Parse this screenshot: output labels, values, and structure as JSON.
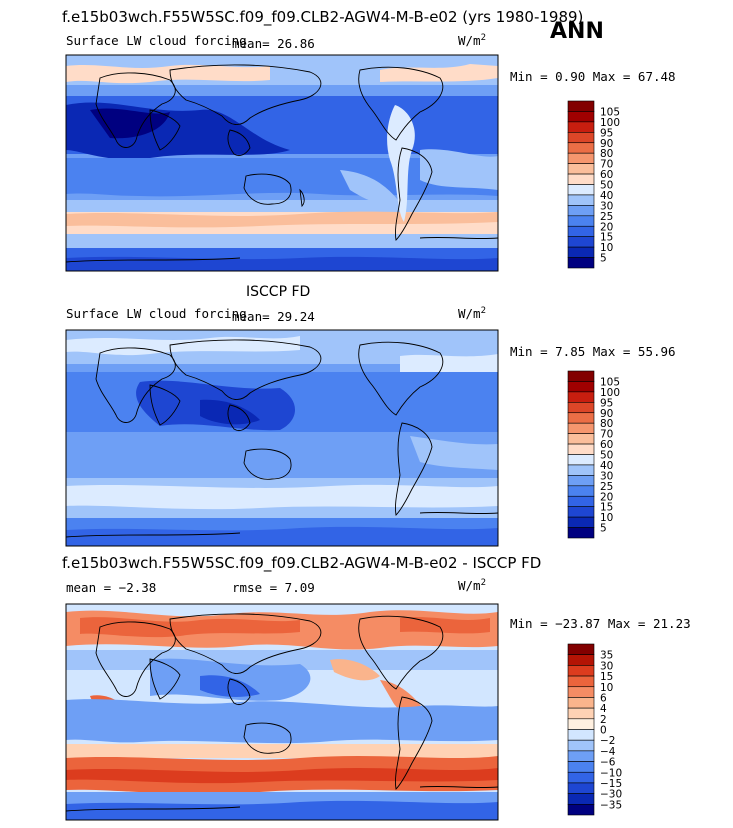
{
  "header": {
    "case_title": "f.e15b03wch.F55W5SC.f09_f09.CLB2-AGW4-M-B-e02 (yrs 1980-1989)",
    "season": "ANN"
  },
  "panels": [
    {
      "title": "",
      "variable": "Surface LW cloud forcing",
      "stat_text": "mean=  26.86",
      "stat2_text": "",
      "units": "W/m",
      "units_sup": "2",
      "minmax": "Min =   0.90 Max =  67.48",
      "levels": [
        "5",
        "10",
        "15",
        "20",
        "25",
        "30",
        "40",
        "50",
        "60",
        "70",
        "80",
        "90",
        "95",
        "100",
        "105"
      ]
    },
    {
      "title": "ISCCP FD",
      "variable": "Surface LW cloud forcing",
      "stat_text": "mean=  29.24",
      "stat2_text": "",
      "units": "W/m",
      "units_sup": "2",
      "minmax": "Min =   7.85 Max =  55.96",
      "levels": [
        "5",
        "10",
        "15",
        "20",
        "25",
        "30",
        "40",
        "50",
        "60",
        "70",
        "80",
        "90",
        "95",
        "100",
        "105"
      ]
    },
    {
      "title": "f.e15b03wch.F55W5SC.f09_f09.CLB2-AGW4-M-B-e02 - ISCCP FD",
      "variable": "",
      "stat_text": "mean =  −2.38",
      "stat2_text": "rmse =   7.09",
      "units": "W/m",
      "units_sup": "2",
      "minmax": "Min = −23.87 Max =  21.23",
      "levels": [
        "−35",
        "−30",
        "−15",
        "−10",
        "−6",
        "−4",
        "−2",
        "0",
        "2",
        "4",
        "6",
        "10",
        "15",
        "30",
        "35"
      ]
    }
  ],
  "colors": {
    "sequential": [
      "#000080",
      "#0a28b4",
      "#1e46d2",
      "#3264e6",
      "#4b82f0",
      "#6e9ff5",
      "#a0c4fa",
      "#dcebff",
      "#ffdcc8",
      "#fabe9b",
      "#f5966e",
      "#eb6e46",
      "#dc4628",
      "#c81e0f",
      "#a00000",
      "#820000"
    ],
    "diverging": [
      "#000080",
      "#0a28b4",
      "#1e46d2",
      "#3264e6",
      "#4b82f0",
      "#6e9ff5",
      "#a0c4fa",
      "#d2e6ff",
      "#fff0e0",
      "#ffd2b4",
      "#fab48c",
      "#f58c64",
      "#eb643c",
      "#dc3c1e",
      "#b41405",
      "#820000"
    ]
  },
  "chart_data": [
    {
      "type": "heatmap",
      "title": "",
      "subtitle": "Surface LW cloud forcing",
      "units": "W/m2",
      "stats": {
        "mean": 26.86,
        "min": 0.9,
        "max": 67.48
      },
      "contour_levels": [
        5,
        10,
        15,
        20,
        25,
        30,
        40,
        50,
        60,
        70,
        80,
        90,
        95,
        100,
        105
      ],
      "grid": false,
      "legend": "right"
    },
    {
      "type": "heatmap",
      "title": "ISCCP FD",
      "subtitle": "Surface LW cloud forcing",
      "units": "W/m2",
      "stats": {
        "mean": 29.24,
        "min": 7.85,
        "max": 55.96
      },
      "contour_levels": [
        5,
        10,
        15,
        20,
        25,
        30,
        40,
        50,
        60,
        70,
        80,
        90,
        95,
        100,
        105
      ],
      "grid": false,
      "legend": "right"
    },
    {
      "type": "heatmap",
      "title": "f.e15b03wch.F55W5SC.f09_f09.CLB2-AGW4-M-B-e02 - ISCCP FD",
      "units": "W/m2",
      "stats": {
        "mean": -2.38,
        "rmse": 7.09,
        "min": -23.87,
        "max": 21.23
      },
      "contour_levels": [
        -35,
        -30,
        -15,
        -10,
        -6,
        -4,
        -2,
        0,
        2,
        4,
        6,
        10,
        15,
        30,
        35
      ],
      "grid": false,
      "legend": "right"
    }
  ]
}
